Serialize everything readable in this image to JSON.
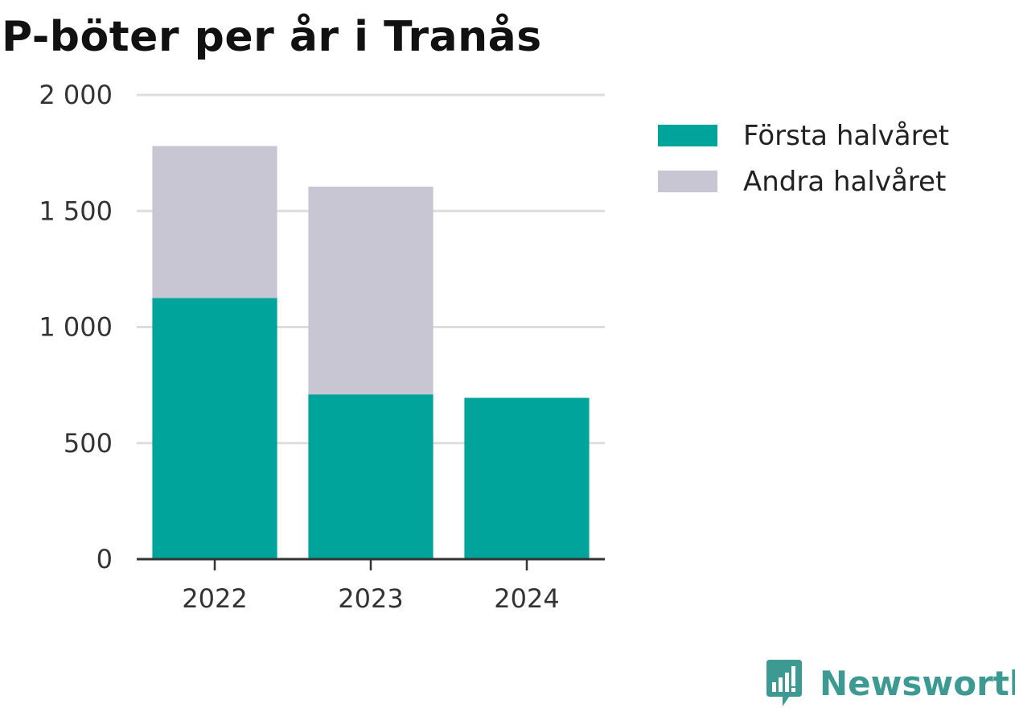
{
  "title": "P-böter per år i Tranås",
  "colors": {
    "first_half": "#00a49a",
    "second_half": "#c8c6d2",
    "brand": "#3d9a92",
    "grid": "#dddddd",
    "axis": "#333333"
  },
  "legend": [
    {
      "label": "Första halvåret",
      "color": "#00a49a"
    },
    {
      "label": "Andra halvåret",
      "color": "#c8c6d2"
    }
  ],
  "brand": {
    "name": "Newsworthy",
    "icon": "bar-chart-speech-bubble-icon"
  },
  "chart_data": {
    "type": "bar",
    "stacked": true,
    "categories": [
      "2022",
      "2023",
      "2024"
    ],
    "series": [
      {
        "name": "Första halvåret",
        "values": [
          1125,
          710,
          695
        ],
        "color": "#00a49a"
      },
      {
        "name": "Andra halvåret",
        "values": [
          655,
          895,
          0
        ],
        "color": "#c8c6d2"
      }
    ],
    "ylim": [
      0,
      2000
    ],
    "yticks": [
      0,
      500,
      1000,
      1500,
      2000
    ],
    "ytick_labels": [
      "0",
      "500",
      "1 000",
      "1 500",
      "2 000"
    ],
    "grid": true,
    "legend_position": "right",
    "title": "P-böter per år i Tranås",
    "xlabel": "",
    "ylabel": ""
  }
}
